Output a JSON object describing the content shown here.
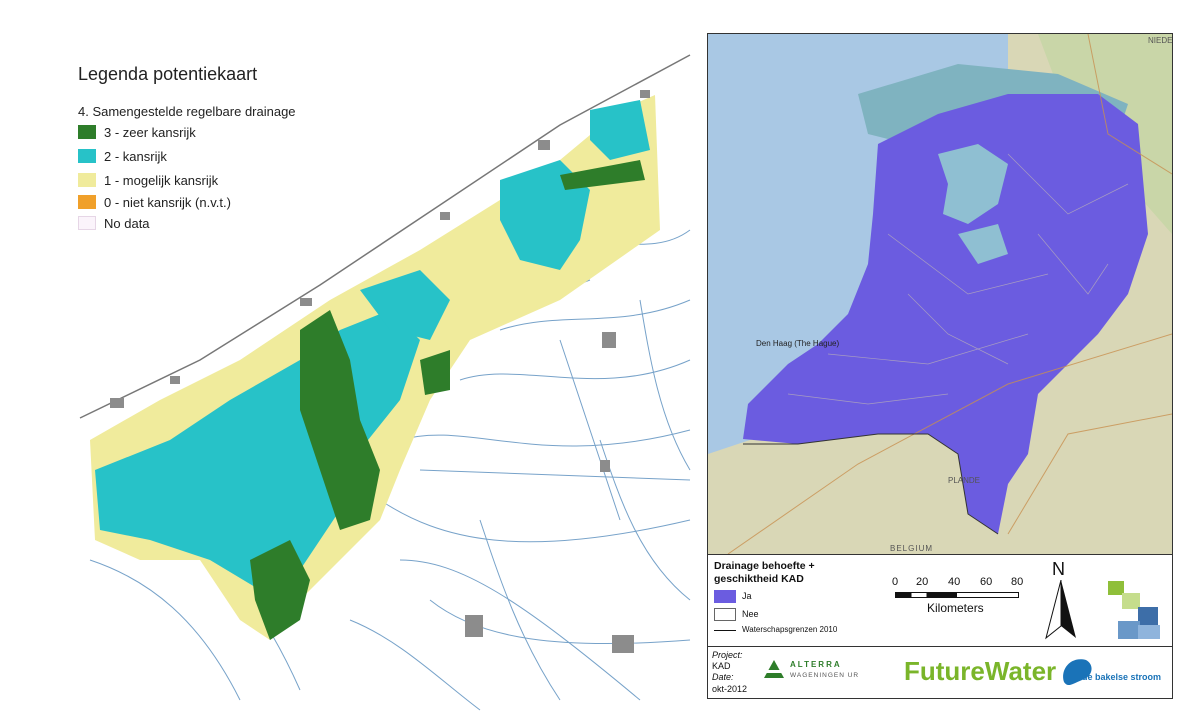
{
  "left_legend": {
    "title": "Legenda potentiekaart",
    "subtitle": "4. Samengestelde regelbare drainage",
    "items": [
      {
        "label": "3 - zeer kansrijk",
        "color": "#2e7d2a"
      },
      {
        "label": "2 - kansrijk",
        "color": "#27c2c8"
      },
      {
        "label": "1 - mogelijk kansrijk",
        "color": "#f0eb9c"
      },
      {
        "label": "0 - niet kansrijk (n.v.t.)",
        "color": "#f0a02a"
      },
      {
        "label": "No data",
        "color": "#fbf4fb"
      }
    ]
  },
  "right_map": {
    "legend_title_1": "Drainage behoefte +",
    "legend_title_2": "geschiktheid KAD",
    "ja_label": "Ja",
    "nee_label": "Nee",
    "ja_color": "#6b5ce0",
    "boundary_label": "Waterschapsgrenzen 2010",
    "scale_numbers": [
      "0",
      "20",
      "40",
      "60",
      "80"
    ],
    "scale_unit": "Kilometers",
    "north_label": "N",
    "project_label": "Project:",
    "project_value": "KAD",
    "date_label": "Date:",
    "date_value": "okt-2012",
    "logo_alterra_1": "ALTERRA",
    "logo_alterra_2": "WAGENINGEN UR",
    "logo_futurewater": "FutureWater",
    "logo_bakelse": "de bakelse stroom",
    "place_labels": {
      "niede": "NIEDE",
      "denhaag": "Den Haag (The Hague)",
      "belgium": "BELGIUM",
      "vlaanderen": "PLANDE"
    }
  }
}
